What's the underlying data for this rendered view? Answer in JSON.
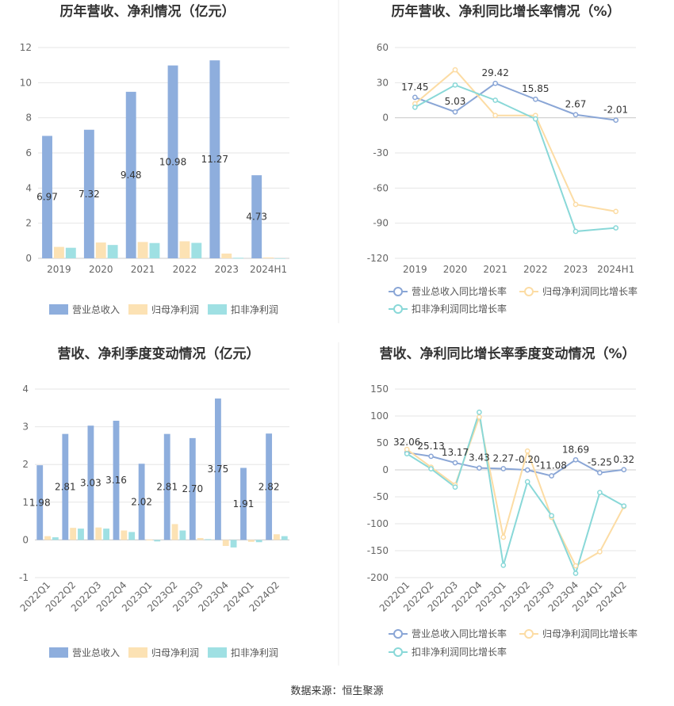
{
  "colors": {
    "revenue": "#8eaedd",
    "net_profit": "#fce2b4",
    "deducted_profit": "#9fe0e3",
    "revenue_line": "#8aa6d6",
    "net_line": "#fcdca4",
    "deducted_line": "#89d8d8",
    "grid": "#e6e6e6",
    "axis": "#cccccc",
    "divider": "#eeeeee"
  },
  "footer": {
    "source": "数据来源：恒生聚源"
  },
  "chart_data": [
    {
      "type": "bar",
      "title": "历年营收、净利情况（亿元）",
      "categories": [
        "2019",
        "2020",
        "2021",
        "2022",
        "2023",
        "2024H1"
      ],
      "ylim": [
        0,
        12
      ],
      "yticks": [
        0,
        2,
        4,
        6,
        8,
        10,
        12
      ],
      "grid": true,
      "legend": "bottom",
      "series": [
        {
          "name": "营业总收入",
          "values": [
            6.97,
            7.32,
            9.48,
            10.98,
            11.27,
            4.73
          ],
          "labels": [
            "6.97",
            "7.32",
            "9.48",
            "10.98",
            "11.27",
            "4.73"
          ]
        },
        {
          "name": "归母净利润",
          "values": [
            0.65,
            0.9,
            0.93,
            0.97,
            0.27,
            0.05
          ]
        },
        {
          "name": "扣非净利润",
          "values": [
            0.6,
            0.76,
            0.87,
            0.88,
            0.03,
            0.0
          ]
        }
      ]
    },
    {
      "type": "line",
      "title": "历年营收、净利同比增长率情况（%）",
      "categories": [
        "2019",
        "2020",
        "2021",
        "2022",
        "2023",
        "2024H1"
      ],
      "ylim": [
        -120,
        60
      ],
      "yticks": [
        -120,
        -90,
        -60,
        -30,
        0,
        30,
        60
      ],
      "grid": true,
      "legend": "bottom",
      "series": [
        {
          "name": "营业总收入同比增长率",
          "values": [
            17.45,
            5.03,
            29.42,
            15.85,
            2.67,
            -2.01
          ],
          "labels": [
            "17.45",
            "5.03",
            "29.42",
            "15.85",
            "2.67",
            "-2.01"
          ]
        },
        {
          "name": "归母净利润同比增长率",
          "values": [
            12,
            41,
            2,
            2,
            -74,
            -80
          ]
        },
        {
          "name": "扣非净利润同比增长率",
          "values": [
            9,
            28,
            15,
            -1,
            -97,
            -94
          ]
        }
      ]
    },
    {
      "type": "bar",
      "title": "营收、净利季度变动情况（亿元）",
      "categories": [
        "2022Q1",
        "2022Q2",
        "2022Q3",
        "2022Q4",
        "2023Q1",
        "2023Q2",
        "2023Q3",
        "2023Q4",
        "2024Q1",
        "2024Q2"
      ],
      "ylim": [
        -1,
        4
      ],
      "yticks": [
        -1,
        0,
        1,
        2,
        3,
        4
      ],
      "grid": true,
      "legend": "bottom",
      "series": [
        {
          "name": "营业总收入",
          "values": [
            1.98,
            2.81,
            3.03,
            3.16,
            2.02,
            2.81,
            2.7,
            3.75,
            1.91,
            2.82
          ],
          "labels": [
            "1.98",
            "2.81",
            "3.03",
            "3.16",
            "2.02",
            "2.81",
            "2.70",
            "3.75",
            "1.91",
            "2.82"
          ]
        },
        {
          "name": "归母净利润",
          "values": [
            0.1,
            0.32,
            0.33,
            0.25,
            0.01,
            0.42,
            0.05,
            -0.16,
            -0.05,
            0.15
          ]
        },
        {
          "name": "扣非净利润",
          "values": [
            0.07,
            0.3,
            0.3,
            0.21,
            -0.04,
            0.25,
            0.02,
            -0.2,
            -0.06,
            0.1
          ]
        }
      ]
    },
    {
      "type": "line",
      "title": "营收、净利同比增长率季度变动情况（%）",
      "categories": [
        "2022Q1",
        "2022Q2",
        "2022Q3",
        "2022Q4",
        "2023Q1",
        "2023Q2",
        "2023Q3",
        "2023Q4",
        "2024Q1",
        "2024Q2"
      ],
      "ylim": [
        -200,
        150
      ],
      "yticks": [
        -200,
        -150,
        -100,
        -50,
        0,
        50,
        100,
        150
      ],
      "grid": true,
      "legend": "bottom",
      "series": [
        {
          "name": "营业总收入同比增长率",
          "values": [
            32.06,
            25.13,
            13.17,
            3.43,
            2.27,
            -0.2,
            -11.08,
            18.69,
            -5.25,
            0.32
          ],
          "labels": [
            "32.06",
            "25.13",
            "13.17",
            "3.43",
            "2.27",
            "-0.20",
            "-11.08",
            "18.69",
            "-5.25",
            "0.32"
          ]
        },
        {
          "name": "归母净利润同比增长率",
          "values": [
            38,
            5,
            -28,
            98,
            -125,
            35,
            -88,
            -178,
            -152,
            -68
          ]
        },
        {
          "name": "扣非净利润同比增长率",
          "values": [
            30,
            2,
            -32,
            107,
            -177,
            -22,
            -85,
            -192,
            -42,
            -67
          ]
        }
      ]
    }
  ]
}
